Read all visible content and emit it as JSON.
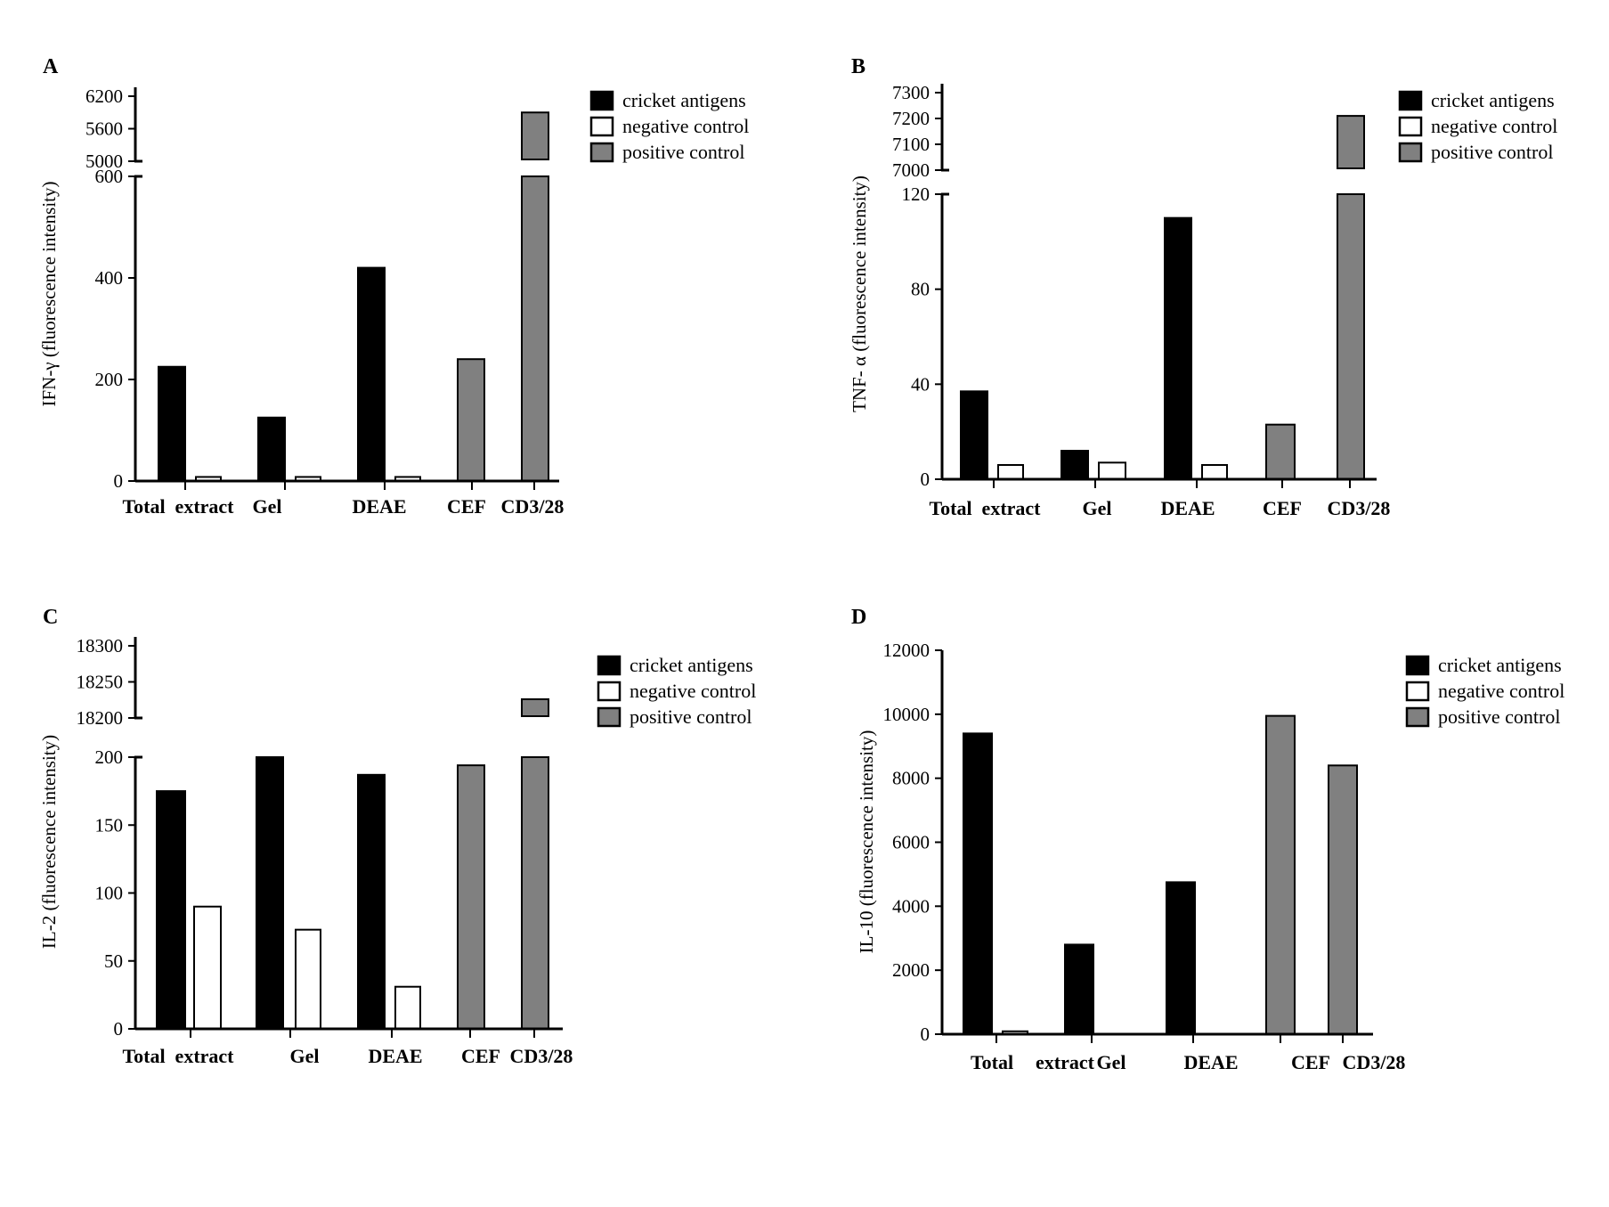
{
  "colors": {
    "cricket": "#000000",
    "negative": "#ffffff",
    "positive": "#808080",
    "axis": "#000000"
  },
  "legend": [
    {
      "key": "cricket",
      "label": "cricket antigens"
    },
    {
      "key": "negative",
      "label": "negative control"
    },
    {
      "key": "positive",
      "label": "positive control"
    }
  ],
  "chart_data": [
    {
      "panel": "A",
      "type": "bar",
      "ylabel": "IFN-γ  (fluorescence intensity)",
      "categories": [
        "Total  extract",
        "Gel",
        "DEAE",
        "CEF",
        "CD3/28"
      ],
      "lower_ticks": [
        0,
        200,
        400,
        600
      ],
      "upper_ticks": [
        5000,
        5600,
        6200
      ],
      "series": [
        {
          "name": "cricket antigens",
          "key": "cricket",
          "values": [
            225,
            125,
            420,
            null,
            null
          ]
        },
        {
          "name": "negative control",
          "key": "negative",
          "values": [
            8,
            8,
            8,
            null,
            null
          ]
        },
        {
          "name": "positive control",
          "key": "positive",
          "values": [
            null,
            null,
            null,
            240,
            5900
          ]
        }
      ]
    },
    {
      "panel": "B",
      "type": "bar",
      "ylabel": "TNF- α  (fluorescence intensity)",
      "categories": [
        "Total  extract",
        "Gel",
        "DEAE",
        "CEF",
        "CD3/28"
      ],
      "lower_ticks": [
        0,
        40,
        80,
        120
      ],
      "upper_ticks": [
        7000,
        7100,
        7200,
        7300
      ],
      "series": [
        {
          "name": "cricket antigens",
          "key": "cricket",
          "values": [
            37,
            12,
            110,
            null,
            null
          ]
        },
        {
          "name": "negative control",
          "key": "negative",
          "values": [
            6,
            7,
            6,
            null,
            null
          ]
        },
        {
          "name": "positive control",
          "key": "positive",
          "values": [
            null,
            null,
            null,
            23,
            7210
          ]
        }
      ]
    },
    {
      "panel": "C",
      "type": "bar",
      "ylabel": "IL-2  (fluorescence intensity)",
      "categories": [
        "Total  extract",
        "Gel",
        "DEAE",
        "CEF",
        "CD3/28"
      ],
      "lower_ticks": [
        0,
        50,
        100,
        150,
        200
      ],
      "upper_ticks": [
        18200,
        18250,
        18300
      ],
      "series": [
        {
          "name": "cricket antigens",
          "key": "cricket",
          "values": [
            175,
            205,
            187,
            null,
            null
          ]
        },
        {
          "name": "negative control",
          "key": "negative",
          "values": [
            90,
            73,
            31,
            null,
            null
          ]
        },
        {
          "name": "positive control",
          "key": "positive",
          "values": [
            null,
            null,
            null,
            194,
            18226
          ]
        }
      ]
    },
    {
      "panel": "D",
      "type": "bar",
      "ylabel": "IL-10  (fluorescence intensity)",
      "categories": [
        "Total  extract",
        "Gel",
        "DEAE",
        "CEF",
        "CD3/28"
      ],
      "lower_ticks": [
        0,
        2000,
        4000,
        6000,
        8000,
        10000,
        12000
      ],
      "upper_ticks": [],
      "series": [
        {
          "name": "cricket antigens",
          "key": "cricket",
          "values": [
            9400,
            2800,
            4750,
            null,
            null
          ]
        },
        {
          "name": "negative control",
          "key": "negative",
          "values": [
            90,
            0,
            0,
            null,
            null
          ]
        },
        {
          "name": "positive control",
          "key": "positive",
          "values": [
            null,
            null,
            null,
            9950,
            8400
          ]
        }
      ]
    }
  ]
}
